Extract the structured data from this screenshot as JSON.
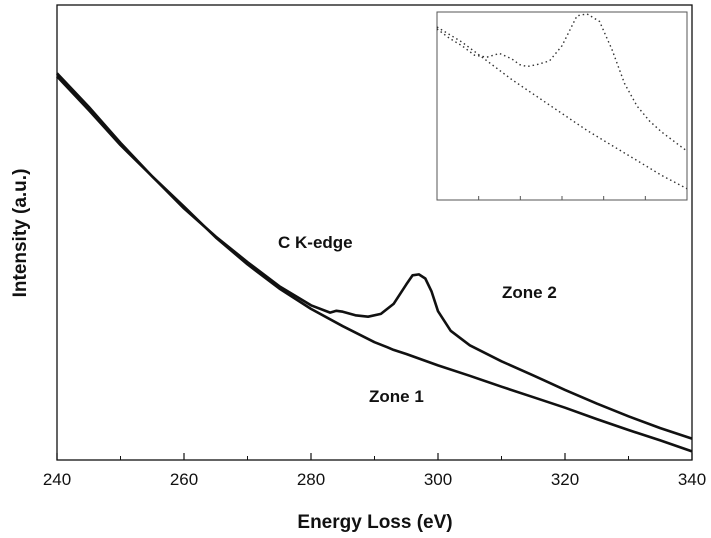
{
  "chart_data": {
    "type": "line",
    "title": "",
    "xlabel": "Energy Loss (eV)",
    "ylabel": "Intensity (a.u.)",
    "xlim": [
      240,
      340
    ],
    "ylim": [
      0,
      100
    ],
    "xticks": [
      240,
      260,
      280,
      300,
      320,
      340
    ],
    "y_tick_labels_shown": false,
    "grid": false,
    "legend": "none",
    "line_color": "#111111",
    "annotations": [
      "C K-edge",
      "Zone 2",
      "Zone 1"
    ],
    "series": [
      {
        "x": [
          240,
          245,
          250,
          255,
          260,
          265,
          270,
          275,
          280,
          283,
          284,
          285,
          287,
          289,
          291,
          293,
          295,
          296,
          297,
          298,
          299,
          300,
          302,
          305,
          310,
          315,
          320,
          325,
          330,
          335,
          340
        ],
        "y": [
          84.3,
          76.9,
          69.2,
          62.3,
          55.3,
          49.1,
          43.5,
          38.2,
          34.0,
          32.4,
          32.8,
          32.6,
          31.8,
          31.5,
          32.1,
          34.3,
          38.6,
          40.6,
          40.8,
          39.9,
          37.0,
          32.7,
          28.4,
          25.2,
          21.7,
          18.6,
          15.4,
          12.4,
          9.6,
          7.0,
          4.7
        ]
      },
      {
        "x": [
          240,
          245,
          250,
          255,
          260,
          265,
          270,
          275,
          280,
          285,
          290,
          292,
          293,
          295,
          300,
          305,
          310,
          315,
          320,
          325,
          330,
          335,
          340
        ],
        "y": [
          85.0,
          77.6,
          69.7,
          62.3,
          55.7,
          48.9,
          43.0,
          37.7,
          33.2,
          29.4,
          25.9,
          24.8,
          24.2,
          23.3,
          20.8,
          18.5,
          16.1,
          13.8,
          11.5,
          9.0,
          6.6,
          4.3,
          1.9
        ]
      }
    ],
    "inset": {
      "type": "scatter",
      "x_tick_labels_legible": false,
      "series": [
        {
          "x": [
            0.0,
            0.05,
            0.1,
            0.15,
            0.2,
            0.25,
            0.3,
            0.33,
            0.36,
            0.4,
            0.45,
            0.5,
            0.53,
            0.56,
            0.6,
            0.65,
            0.7,
            0.75,
            0.8,
            0.85,
            0.9,
            0.95,
            1.0
          ],
          "y": [
            0.91,
            0.86,
            0.82,
            0.77,
            0.76,
            0.78,
            0.75,
            0.72,
            0.71,
            0.72,
            0.74,
            0.82,
            0.9,
            0.98,
            0.99,
            0.95,
            0.8,
            0.62,
            0.5,
            0.42,
            0.36,
            0.31,
            0.26
          ]
        },
        {
          "x": [
            0.0,
            0.1,
            0.2,
            0.3,
            0.4,
            0.5,
            0.6,
            0.7,
            0.8,
            0.9,
            1.0
          ],
          "y": [
            0.92,
            0.84,
            0.74,
            0.64,
            0.55,
            0.46,
            0.37,
            0.29,
            0.21,
            0.13,
            0.06
          ]
        }
      ]
    }
  }
}
